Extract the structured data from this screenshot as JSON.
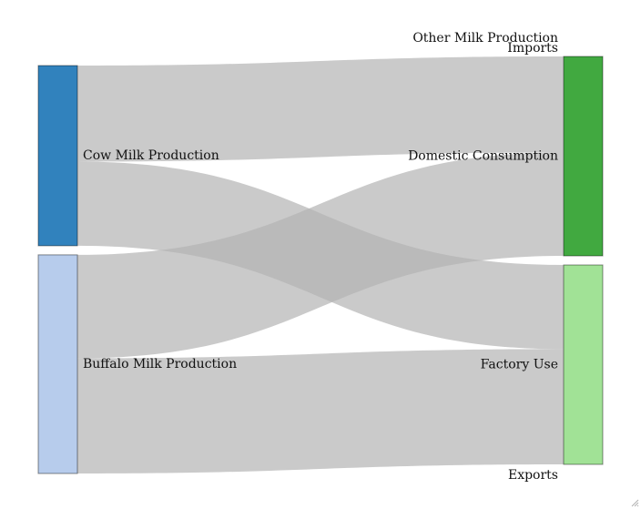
{
  "chart_data": {
    "type": "sankey",
    "nodes": [
      {
        "id": "cow",
        "label": "Cow Milk Production",
        "column": 0,
        "color": "#3182bd"
      },
      {
        "id": "buffalo",
        "label": "Buffalo Milk Production",
        "column": 0,
        "color": "#b7ccec"
      },
      {
        "id": "other",
        "label": "Other Milk Production",
        "column": 1,
        "color": "#41a940"
      },
      {
        "id": "imports",
        "label": "Imports",
        "column": 1,
        "color": "#41a940"
      },
      {
        "id": "domestic",
        "label": "Domestic Consumption",
        "column": 1,
        "color": "#41a940"
      },
      {
        "id": "factory",
        "label": "Factory Use",
        "column": 1,
        "color": "#a1e296"
      },
      {
        "id": "exports",
        "label": "Exports",
        "column": 1,
        "color": "#a1e296"
      }
    ],
    "links": [
      {
        "source": "cow",
        "target": "domestic",
        "value": 105
      },
      {
        "source": "cow",
        "target": "factory",
        "value": 92
      },
      {
        "source": "buffalo",
        "target": "domestic",
        "value": 113
      },
      {
        "source": "buffalo",
        "target": "factory",
        "value": 126
      }
    ],
    "link_color": "#b4b4b4"
  }
}
